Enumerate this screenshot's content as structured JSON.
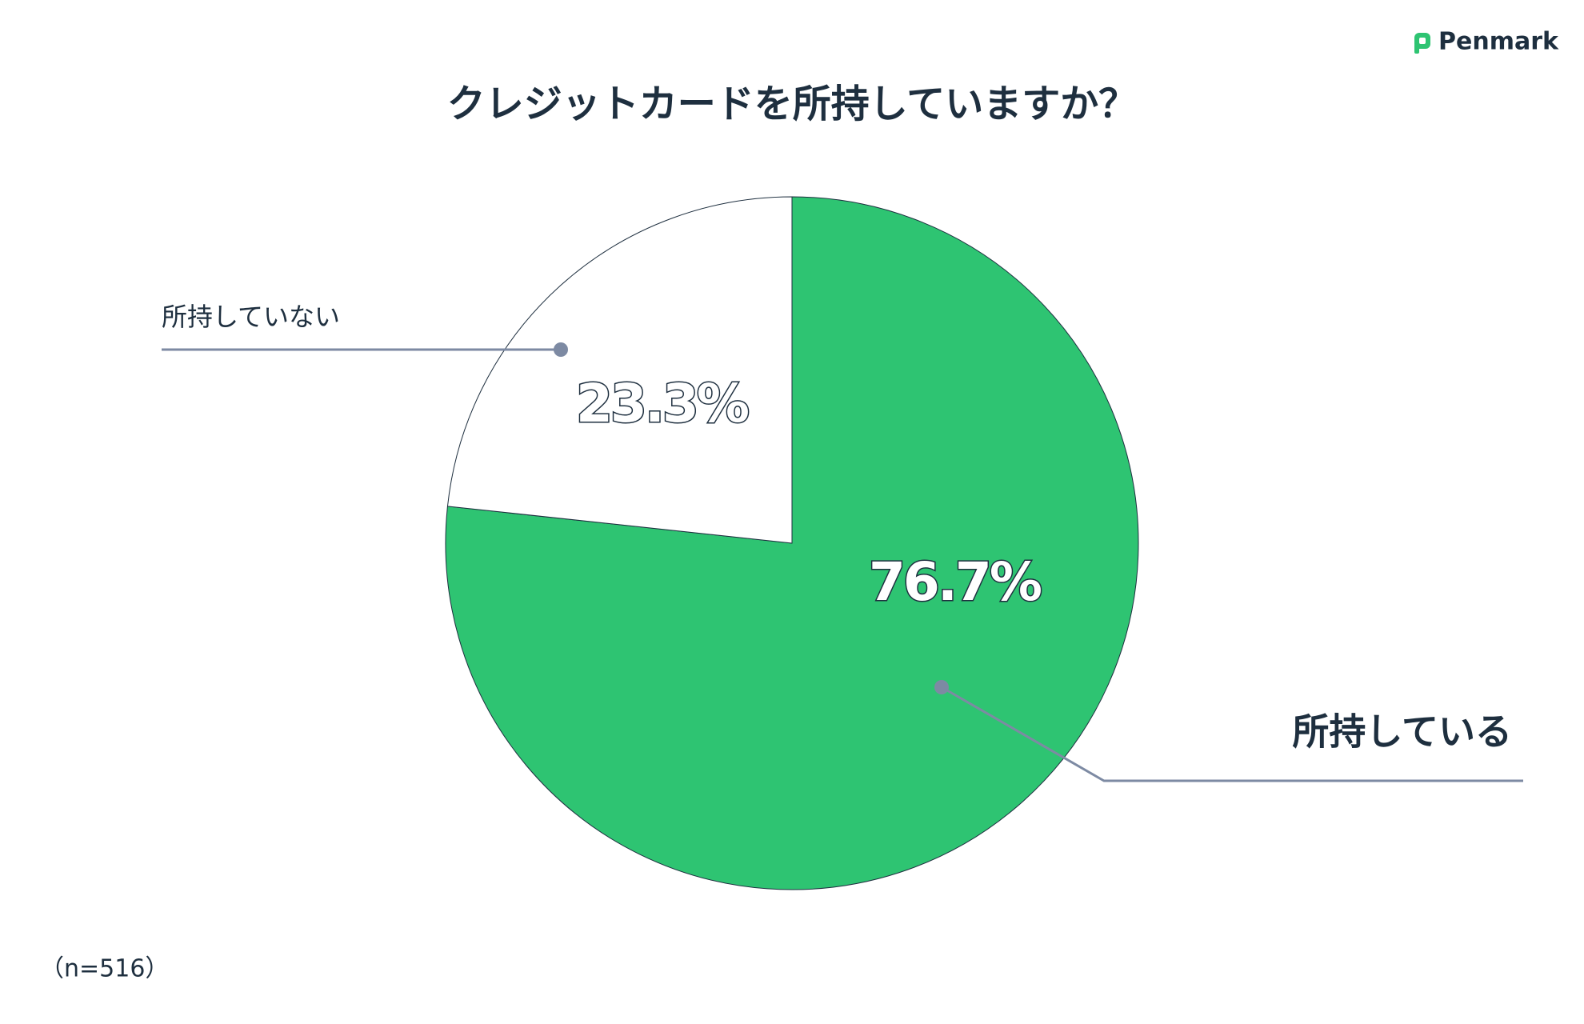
{
  "chart_data": {
    "type": "pie",
    "title": "クレジットカードを所持していますか？",
    "categories": [
      "所持している",
      "所持していない"
    ],
    "values": [
      76.7,
      23.3
    ],
    "value_labels": [
      "76.7%",
      "23.3%"
    ],
    "colors": [
      "#2ec472",
      "#ffffff"
    ],
    "note": "（n=516）",
    "brand": "Penmark"
  }
}
